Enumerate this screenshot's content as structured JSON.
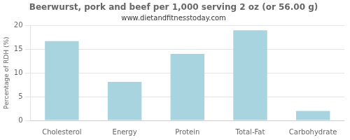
{
  "chart_data": {
    "type": "bar",
    "title": "Beerwurst, pork and beef per 1,000 serving 2 oz (or 56.00 g)",
    "subtitle": "www.dietandfitnesstoday.com",
    "categories": [
      "Cholesterol",
      "Energy",
      "Protein",
      "Total-Fat",
      "Carbohydrate"
    ],
    "values": [
      16.7,
      8.1,
      14.0,
      19.0,
      2.0
    ],
    "color": "#a8d4df",
    "ylabel": "Percentage of RDH (%)",
    "ylim": [
      0,
      20
    ],
    "yticks": [
      0,
      5,
      10,
      15,
      20
    ],
    "grid": true
  }
}
